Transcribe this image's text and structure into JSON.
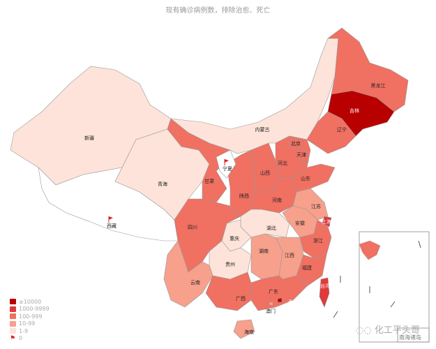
{
  "title": "现有确诊病例数，排除治愈、死亡",
  "legend": [
    {
      "label": "≥10000",
      "color": "#b80000",
      "key": "c5"
    },
    {
      "label": "1000-9999",
      "color": "#e03a3a",
      "key": "c4"
    },
    {
      "label": "100-999",
      "color": "#f07062",
      "key": "c3"
    },
    {
      "label": "10-99",
      "color": "#f7a08c",
      "key": "c2"
    },
    {
      "label": "1-9",
      "color": "#fde3d9",
      "key": "c1"
    },
    {
      "label": "0",
      "color": "#ffffff",
      "key": "c0",
      "icon": "flag-icon"
    }
  ],
  "provinces": [
    {
      "name": "新疆",
      "category": "c1"
    },
    {
      "name": "西藏",
      "category": "c0"
    },
    {
      "name": "青海",
      "category": "c1"
    },
    {
      "name": "甘肃",
      "category": "c3"
    },
    {
      "name": "内蒙古",
      "category": "c1"
    },
    {
      "name": "黑龙江",
      "category": "c3"
    },
    {
      "name": "吉林",
      "category": "c5"
    },
    {
      "name": "辽宁",
      "category": "c3"
    },
    {
      "name": "河北",
      "category": "c3"
    },
    {
      "name": "北京",
      "category": "c3"
    },
    {
      "name": "天津",
      "category": "c3"
    },
    {
      "name": "山西",
      "category": "c3"
    },
    {
      "name": "陕西",
      "category": "c3"
    },
    {
      "name": "宁夏",
      "category": "c0"
    },
    {
      "name": "山东",
      "category": "c3"
    },
    {
      "name": "河南",
      "category": "c3"
    },
    {
      "name": "江苏",
      "category": "c2"
    },
    {
      "name": "上海",
      "category": "c4"
    },
    {
      "name": "安徽",
      "category": "c2"
    },
    {
      "name": "湖北",
      "category": "c1"
    },
    {
      "name": "重庆",
      "category": "c1"
    },
    {
      "name": "四川",
      "category": "c3"
    },
    {
      "name": "贵州",
      "category": "c1"
    },
    {
      "name": "云南",
      "category": "c2"
    },
    {
      "name": "湖南",
      "category": "c2"
    },
    {
      "name": "江西",
      "category": "c2"
    },
    {
      "name": "浙江",
      "category": "c3"
    },
    {
      "name": "福建",
      "category": "c3"
    },
    {
      "name": "广西",
      "category": "c3"
    },
    {
      "name": "广东",
      "category": "c3"
    },
    {
      "name": "海南",
      "category": "c2"
    },
    {
      "name": "台湾",
      "category": "c4"
    },
    {
      "name": "香港",
      "category": "c5"
    },
    {
      "name": "澳门",
      "category": "c2"
    }
  ],
  "inset_label": "南海诸岛",
  "watermark": "化工平头哥"
}
